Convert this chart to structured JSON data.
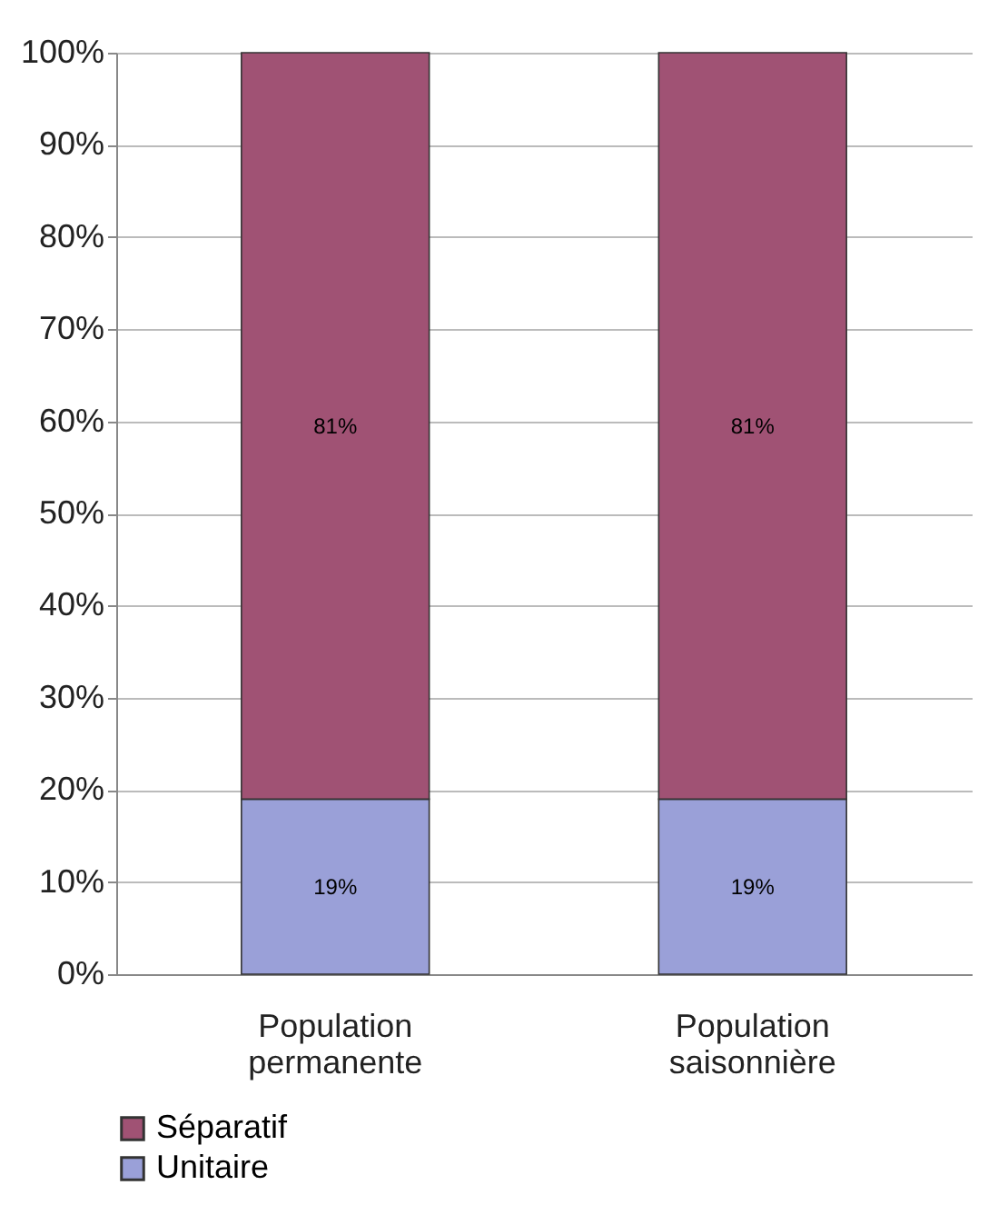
{
  "chart_data": {
    "type": "bar",
    "stacked": true,
    "categories": [
      "Population permanente",
      "Population saisonnière"
    ],
    "series": [
      {
        "name": "Unitaire",
        "color": "#9aa0d8",
        "values": [
          19,
          19
        ],
        "value_labels": [
          "19%",
          "19%"
        ]
      },
      {
        "name": "Séparatif",
        "color": "#a05274",
        "values": [
          81,
          81
        ],
        "value_labels": [
          "81%",
          "81%"
        ]
      }
    ],
    "ylim": [
      0,
      100
    ],
    "yticks": [
      {
        "value": 0,
        "label": "0%"
      },
      {
        "value": 10,
        "label": "10%"
      },
      {
        "value": 20,
        "label": "20%"
      },
      {
        "value": 30,
        "label": "30%"
      },
      {
        "value": 40,
        "label": "40%"
      },
      {
        "value": 50,
        "label": "50%"
      },
      {
        "value": 60,
        "label": "60%"
      },
      {
        "value": 70,
        "label": "70%"
      },
      {
        "value": 80,
        "label": "80%"
      },
      {
        "value": 90,
        "label": "90%"
      },
      {
        "value": 100,
        "label": "100%"
      }
    ],
    "grid": "y",
    "legend": "bottom"
  }
}
